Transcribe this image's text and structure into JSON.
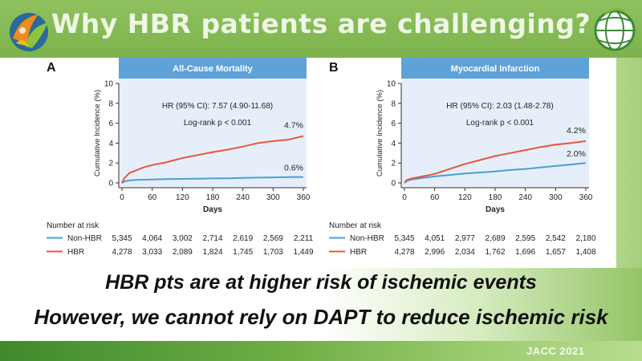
{
  "slide": {
    "title": "Why HBR patients are challenging?",
    "statement_1": "HBR pts are at higher risk of ischemic events",
    "statement_2": "However, we cannot rely on DAPT to reduce ischemic risk",
    "credit": "JACC 2021"
  },
  "colors": {
    "non_hbr": "#4a9fd4",
    "hbr": "#e8553b",
    "panel_header": "#5fa2d8",
    "plot_bg": "#e6eff9",
    "green_band": "#86bb56"
  },
  "chart_data": [
    {
      "panel_letter": "A",
      "type": "line",
      "title": "All-Cause Mortality",
      "xlabel": "Days",
      "ylabel": "Cumulative Incidence (%)",
      "xlim": [
        0,
        360
      ],
      "ylim": [
        0,
        10
      ],
      "xticks": [
        0,
        60,
        120,
        180,
        240,
        300,
        360
      ],
      "yticks": [
        0,
        2,
        4,
        6,
        8,
        10
      ],
      "annotations": [
        "HR (95% CI): 7.57 (4.90-11.68)",
        "Log-rank p < 0.001"
      ],
      "end_labels": {
        "HBR": "4.7%",
        "Non-HBR": "0.6%"
      },
      "series": [
        {
          "name": "Non-HBR",
          "x": [
            0,
            5,
            15,
            30,
            60,
            90,
            120,
            150,
            180,
            210,
            240,
            270,
            300,
            330,
            360
          ],
          "y": [
            0,
            0.15,
            0.25,
            0.3,
            0.35,
            0.38,
            0.4,
            0.42,
            0.45,
            0.47,
            0.5,
            0.53,
            0.56,
            0.58,
            0.6
          ]
        },
        {
          "name": "HBR",
          "x": [
            0,
            5,
            15,
            30,
            45,
            60,
            90,
            120,
            150,
            180,
            210,
            240,
            270,
            300,
            330,
            360
          ],
          "y": [
            0,
            0.5,
            1.0,
            1.3,
            1.6,
            1.8,
            2.1,
            2.5,
            2.8,
            3.1,
            3.35,
            3.65,
            4.0,
            4.2,
            4.35,
            4.7
          ]
        }
      ],
      "risk_table": {
        "header": "Number at risk",
        "rows": [
          {
            "name": "Non-HBR",
            "values": [
              "5,345",
              "4,064",
              "3,002",
              "2,714",
              "2,619",
              "2,569",
              "2,211"
            ]
          },
          {
            "name": "HBR",
            "values": [
              "4,278",
              "3,033",
              "2,089",
              "1,824",
              "1,745",
              "1,703",
              "1,449"
            ]
          }
        ]
      }
    },
    {
      "panel_letter": "B",
      "type": "line",
      "title": "Myocardial Infarction",
      "xlabel": "Days",
      "ylabel": "Cumulative Incidence (%)",
      "xlim": [
        0,
        360
      ],
      "ylim": [
        0,
        10
      ],
      "xticks": [
        0,
        60,
        120,
        180,
        240,
        300,
        360
      ],
      "yticks": [
        0,
        2,
        4,
        6,
        8,
        10
      ],
      "annotations": [
        "HR (95% CI): 2.03 (1.48-2.78)",
        "Log-rank p < 0.001"
      ],
      "end_labels": {
        "HBR": "4.2%",
        "Non-HBR": "2.0%"
      },
      "series": [
        {
          "name": "Non-HBR",
          "x": [
            0,
            5,
            15,
            30,
            60,
            90,
            120,
            150,
            180,
            210,
            240,
            270,
            300,
            330,
            360
          ],
          "y": [
            0,
            0.2,
            0.35,
            0.45,
            0.65,
            0.8,
            0.95,
            1.05,
            1.15,
            1.3,
            1.4,
            1.55,
            1.7,
            1.85,
            2.0
          ]
        },
        {
          "name": "HBR",
          "x": [
            0,
            5,
            15,
            30,
            60,
            90,
            120,
            150,
            180,
            210,
            240,
            270,
            300,
            330,
            360
          ],
          "y": [
            0,
            0.3,
            0.45,
            0.6,
            0.9,
            1.4,
            1.9,
            2.3,
            2.7,
            3.0,
            3.3,
            3.6,
            3.85,
            4.0,
            4.2
          ]
        }
      ],
      "risk_table": {
        "header": "Number at risk",
        "rows": [
          {
            "name": "Non-HBR",
            "values": [
              "5,345",
              "4,051",
              "2,977",
              "2,689",
              "2,595",
              "2,542",
              "2,180"
            ]
          },
          {
            "name": "HBR",
            "values": [
              "4,278",
              "2,996",
              "2,034",
              "1,762",
              "1,696",
              "1,657",
              "1,408"
            ]
          }
        ]
      }
    }
  ]
}
